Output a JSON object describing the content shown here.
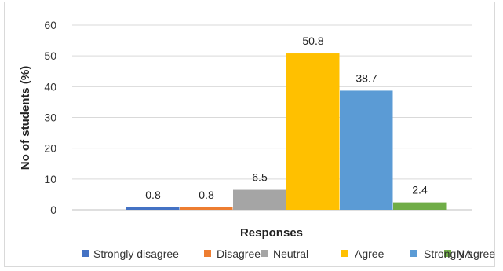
{
  "chart_data": {
    "type": "bar",
    "title": "",
    "xlabel": "Responses",
    "ylabel": "No of students (%)",
    "ylim": [
      0,
      60
    ],
    "yticks": [
      0,
      10,
      20,
      30,
      40,
      50,
      60
    ],
    "grid": true,
    "legend_position": "bottom",
    "categories": [
      "Strongly disagree",
      "Disagree",
      "Neutral",
      "Agree",
      "Strongly  agree",
      "NA"
    ],
    "values": [
      0.8,
      0.8,
      6.5,
      50.8,
      38.7,
      2.4
    ],
    "data_labels": [
      "0.8",
      "0.8",
      "6.5",
      "50.8",
      "38.7",
      "2.4"
    ],
    "colors": [
      "#4472c4",
      "#ed7d31",
      "#a5a5a5",
      "#ffc000",
      "#5b9bd5",
      "#70ad47"
    ]
  }
}
